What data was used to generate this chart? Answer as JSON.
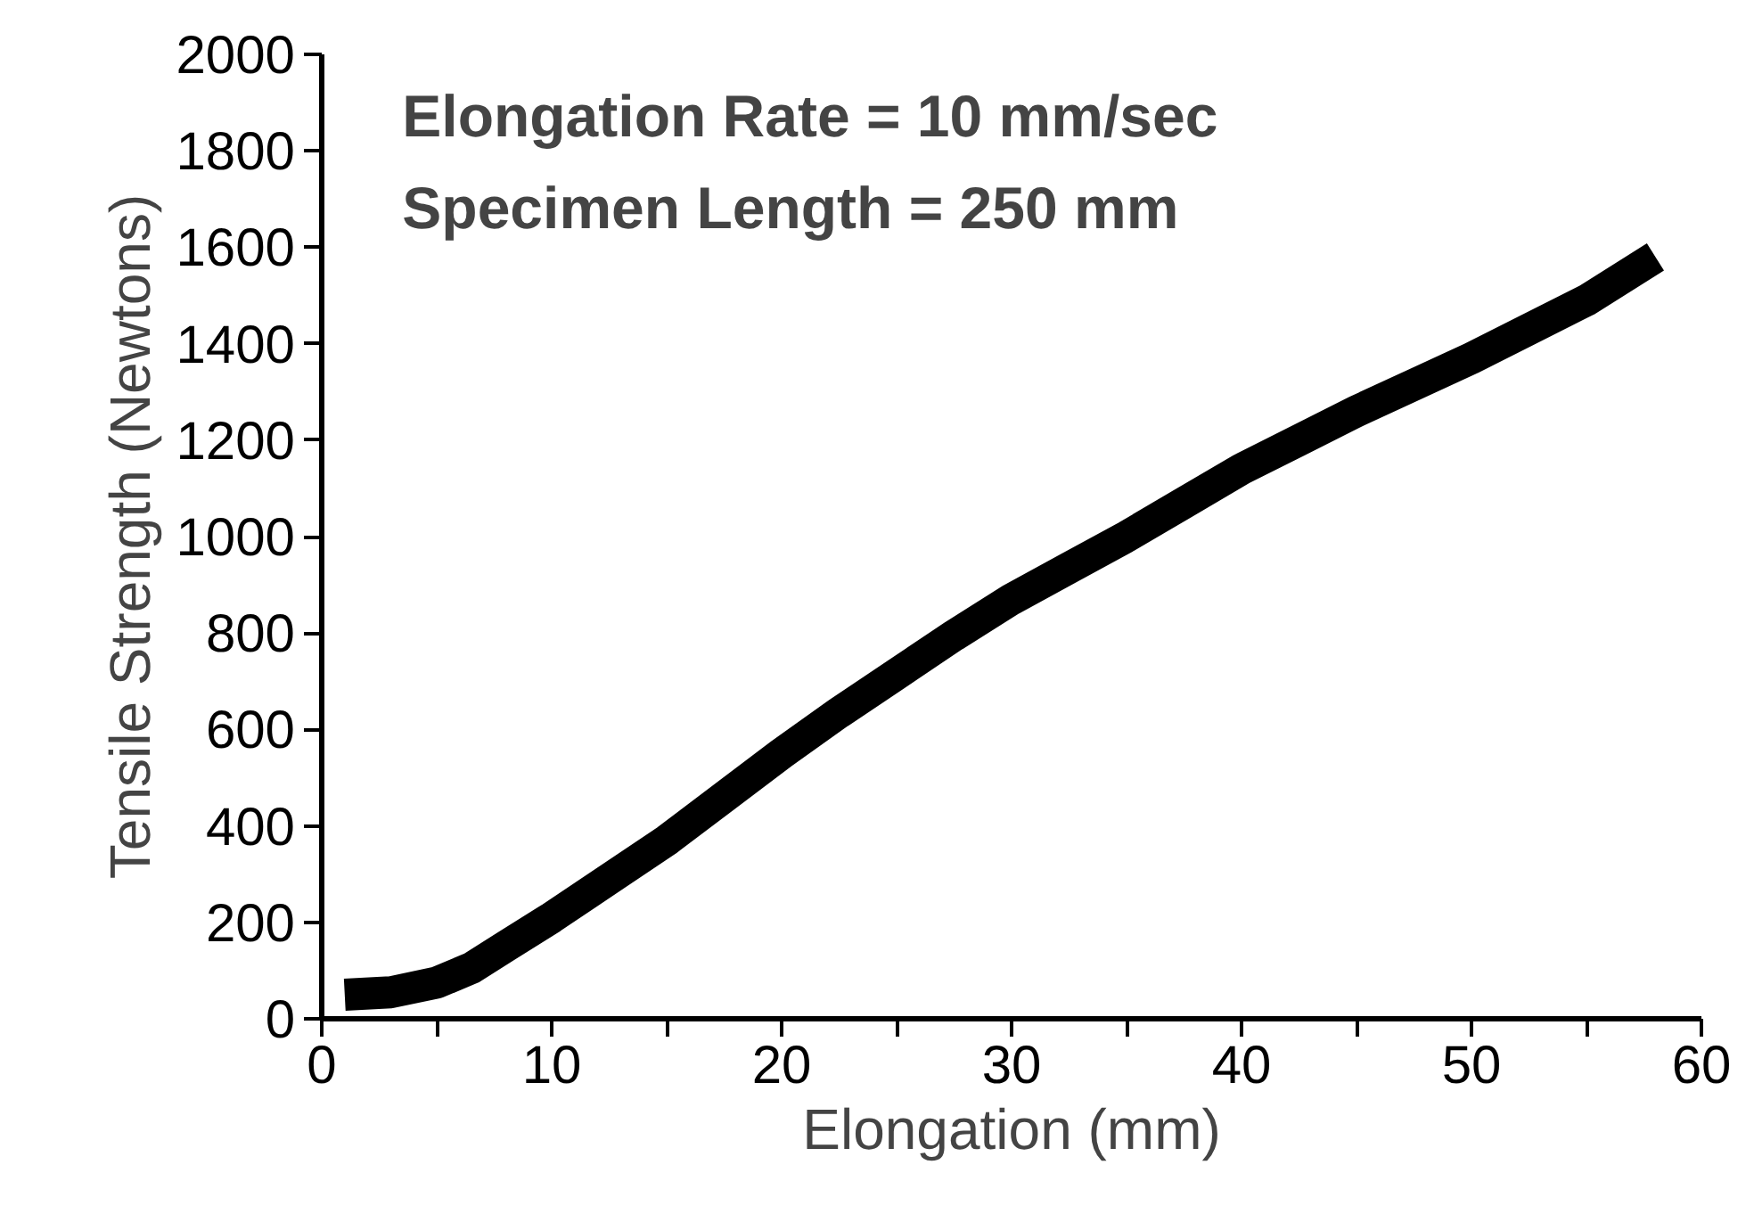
{
  "chart_data": {
    "type": "line",
    "xlabel": "Elongation (mm)",
    "ylabel": "Tensile Strength (Newtons)",
    "annotations": [
      "Elongation Rate = 10 mm/sec",
      "Specimen Length = 250 mm"
    ],
    "x": [
      1,
      3,
      5,
      6.5,
      8,
      10,
      12.5,
      15,
      17.5,
      20,
      22.5,
      25,
      27.5,
      30,
      32.5,
      35,
      37.5,
      40,
      42.5,
      45,
      47.5,
      50,
      52.5,
      55,
      58
    ],
    "series": [
      {
        "color": "#000000",
        "values": [
          50,
          55,
          75,
          105,
          150,
          210,
          290,
          370,
          460,
          550,
          635,
          715,
          795,
          870,
          935,
          1000,
          1070,
          1140,
          1200,
          1260,
          1315,
          1370,
          1430,
          1490,
          1580
        ]
      }
    ],
    "xlim": [
      0,
      60
    ],
    "ylim": [
      0,
      2000
    ],
    "xticks": [
      0,
      10,
      20,
      30,
      40,
      50,
      60,
      {
        "value": 5,
        "label": null
      },
      {
        "value": 15,
        "label": null
      },
      {
        "value": 25,
        "label": null
      },
      {
        "value": 35,
        "label": null
      },
      {
        "value": 45,
        "label": null
      },
      {
        "value": 55,
        "label": null
      }
    ],
    "yticks": [
      0,
      200,
      400,
      600,
      800,
      1000,
      1200,
      1400,
      1600,
      1800,
      2000
    ],
    "grid": false,
    "marker": "none",
    "line_style": "solid"
  }
}
